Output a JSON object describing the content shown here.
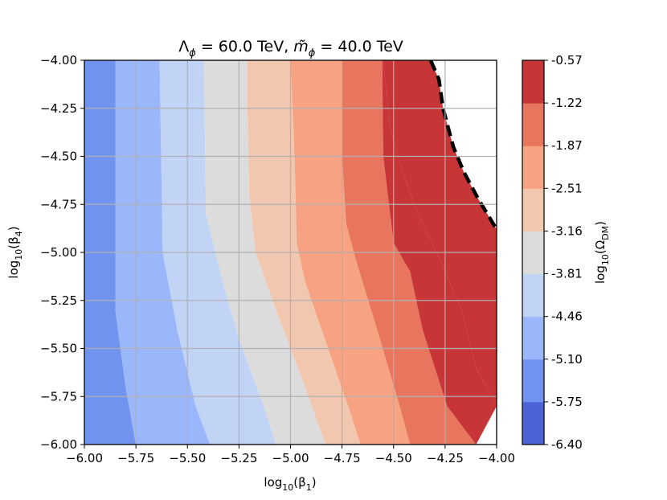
{
  "chart_data": {
    "type": "contour",
    "title_parts": {
      "lambda_symbol": "Λ",
      "phi_sub": "ϕ",
      "lambda_value": " = 60.0 TeV, ",
      "m_symbol": "m̃",
      "m_value": " = 40.0 TeV"
    },
    "xlabel": {
      "prefix": "log",
      "sub": "10",
      "body": "(β",
      "body_sub": "1",
      "suffix": ")"
    },
    "ylabel": {
      "prefix": "log",
      "sub": "10",
      "body": "(β",
      "body_sub": "4",
      "suffix": ")"
    },
    "xlim": [
      -6.0,
      -4.0
    ],
    "ylim": [
      -6.0,
      -4.0
    ],
    "xticks": [
      -6.0,
      -5.75,
      -5.5,
      -5.25,
      -5.0,
      -4.75,
      -4.5,
      -4.25,
      -4.0
    ],
    "xtick_labels": [
      "−6.00",
      "−5.75",
      "−5.50",
      "−5.25",
      "−5.00",
      "−4.75",
      "−4.50",
      "−4.25",
      "−4.00"
    ],
    "yticks": [
      -4.0,
      -4.25,
      -4.5,
      -4.75,
      -5.0,
      -5.25,
      -5.5,
      -5.75,
      -6.0
    ],
    "ytick_labels": [
      "−4.00",
      "−4.25",
      "−4.50",
      "−4.75",
      "−5.00",
      "−5.25",
      "−5.50",
      "−5.75",
      "−6.00"
    ],
    "grid": true,
    "levels": [
      -6.4,
      -5.75,
      -5.1,
      -4.46,
      -3.81,
      -3.16,
      -2.51,
      -1.87,
      -1.22,
      -0.57
    ],
    "colorbar_labels": [
      "-6.40",
      "-5.75",
      "-5.10",
      "-4.46",
      "-3.81",
      "-3.16",
      "-2.51",
      "-1.87",
      "-1.22",
      "-0.57"
    ],
    "colorbar_label": {
      "prefix": "log",
      "sub": "10",
      "body": "(Ω",
      "body_sub": "DM",
      "suffix": ")"
    },
    "level_colors": [
      "#4b63d6",
      "#6f93ef",
      "#9bb7fc",
      "#c1d4f6",
      "#dcdcdc",
      "#f2c7b0",
      "#f6a283",
      "#e8765e",
      "#c83536"
    ],
    "boundaries": [
      {
        "name": "b1",
        "points": [
          [
            -5.85,
            -4.0
          ],
          [
            -5.85,
            -5.3
          ],
          [
            -5.8,
            -5.7
          ],
          [
            -5.75,
            -6.0
          ]
        ]
      },
      {
        "name": "b2",
        "points": [
          [
            -5.635,
            -4.0
          ],
          [
            -5.62,
            -5.0
          ],
          [
            -5.55,
            -5.4
          ],
          [
            -5.46,
            -5.8
          ],
          [
            -5.39,
            -6.0
          ]
        ]
      },
      {
        "name": "b3",
        "points": [
          [
            -5.42,
            -4.0
          ],
          [
            -5.41,
            -4.8
          ],
          [
            -5.33,
            -5.15
          ],
          [
            -5.25,
            -5.45
          ],
          [
            -5.13,
            -5.8
          ],
          [
            -5.07,
            -6.0
          ]
        ]
      },
      {
        "name": "b4",
        "points": [
          [
            -5.21,
            -4.0
          ],
          [
            -5.21,
            -4.2
          ],
          [
            -5.2,
            -4.7
          ],
          [
            -5.17,
            -5.0
          ],
          [
            -5.07,
            -5.3
          ],
          [
            -4.93,
            -5.7
          ],
          [
            -4.83,
            -6.0
          ]
        ]
      },
      {
        "name": "b5",
        "points": [
          [
            -5.0,
            -4.0
          ],
          [
            -4.98,
            -4.5
          ],
          [
            -4.97,
            -4.95
          ],
          [
            -4.93,
            -5.15
          ],
          [
            -4.85,
            -5.4
          ],
          [
            -4.72,
            -5.8
          ],
          [
            -4.66,
            -6.0
          ]
        ]
      },
      {
        "name": "b6",
        "points": [
          [
            -4.75,
            -4.0
          ],
          [
            -4.75,
            -4.5
          ],
          [
            -4.73,
            -4.85
          ],
          [
            -4.68,
            -5.05
          ],
          [
            -4.58,
            -5.4
          ],
          [
            -4.47,
            -5.8
          ],
          [
            -4.42,
            -6.0
          ]
        ]
      },
      {
        "name": "b7",
        "points": [
          [
            -4.555,
            -4.0
          ],
          [
            -4.55,
            -4.5
          ],
          [
            -4.5,
            -4.95
          ],
          [
            -4.42,
            -5.1
          ],
          [
            -4.36,
            -5.4
          ],
          [
            -4.24,
            -5.8
          ],
          [
            -4.1,
            -6.0
          ]
        ]
      },
      {
        "name": "b8",
        "points": [
          [
            -4.55,
            -4.0
          ],
          [
            -4.52,
            -4.33
          ],
          [
            -4.48,
            -4.5
          ],
          [
            -4.39,
            -4.78
          ],
          [
            -4.27,
            -5.05
          ],
          [
            -4.17,
            -5.3
          ],
          [
            -4.1,
            -5.6
          ],
          [
            -4.0,
            -5.8
          ]
        ]
      }
    ],
    "dashed_boundary": [
      [
        -4.32,
        -4.0
      ],
      [
        -4.28,
        -4.1
      ],
      [
        -4.26,
        -4.25
      ],
      [
        -4.21,
        -4.45
      ],
      [
        -4.16,
        -4.58
      ],
      [
        -4.09,
        -4.72
      ],
      [
        -4.0,
        -4.88
      ]
    ]
  }
}
